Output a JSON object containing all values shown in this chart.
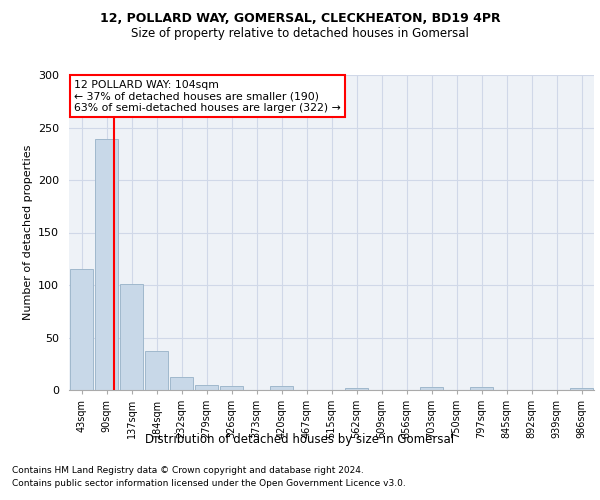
{
  "title1": "12, POLLARD WAY, GOMERSAL, CLECKHEATON, BD19 4PR",
  "title2": "Size of property relative to detached houses in Gomersal",
  "xlabel": "Distribution of detached houses by size in Gomersal",
  "ylabel": "Number of detached properties",
  "bar_labels": [
    "43sqm",
    "90sqm",
    "137sqm",
    "184sqm",
    "232sqm",
    "279sqm",
    "326sqm",
    "373sqm",
    "420sqm",
    "467sqm",
    "515sqm",
    "562sqm",
    "609sqm",
    "656sqm",
    "703sqm",
    "750sqm",
    "797sqm",
    "845sqm",
    "892sqm",
    "939sqm",
    "986sqm"
  ],
  "bar_values": [
    115,
    239,
    101,
    37,
    12,
    5,
    4,
    0,
    4,
    0,
    0,
    2,
    0,
    0,
    3,
    0,
    3,
    0,
    0,
    0,
    2
  ],
  "bar_color": "#c8d8e8",
  "bar_edgecolor": "#a0b8cc",
  "grid_color": "#d0d8e8",
  "annotation_text": "12 POLLARD WAY: 104sqm\n← 37% of detached houses are smaller (190)\n63% of semi-detached houses are larger (322) →",
  "footnote1": "Contains HM Land Registry data © Crown copyright and database right 2024.",
  "footnote2": "Contains public sector information licensed under the Open Government Licence v3.0.",
  "ylim": [
    0,
    300
  ],
  "yticks": [
    0,
    50,
    100,
    150,
    200,
    250,
    300
  ],
  "red_line_x": 1.3,
  "background_color": "#eef2f7"
}
